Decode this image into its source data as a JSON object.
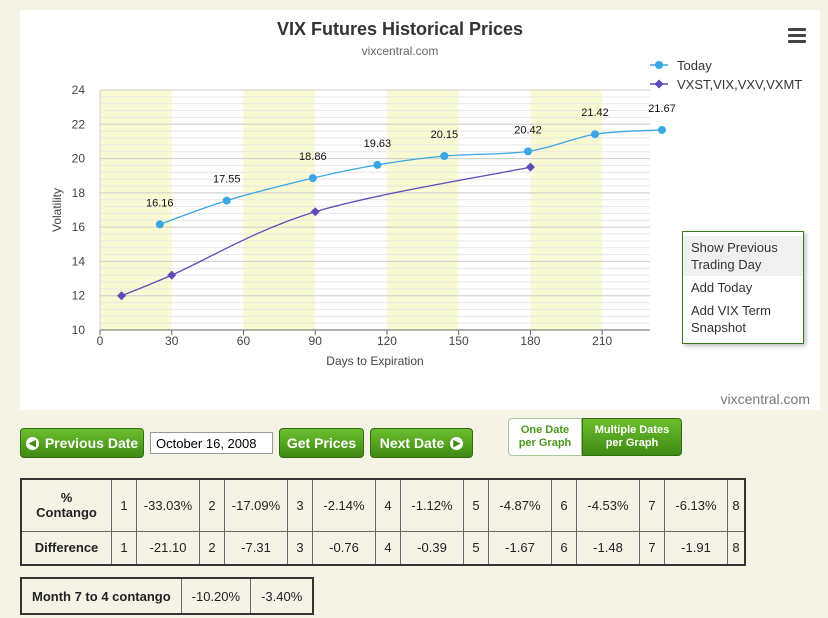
{
  "chart_data": {
    "type": "line",
    "title": "VIX Futures Historical Prices",
    "subtitle": "vixcentral.com",
    "xlabel": "Days to Expiration",
    "ylabel": "Volatility",
    "xlim": [
      0,
      230
    ],
    "ylim": [
      10,
      24
    ],
    "xticks": [
      0,
      30,
      60,
      90,
      120,
      150,
      180,
      210
    ],
    "yticks": [
      10,
      12,
      14,
      16,
      18,
      20,
      22,
      24
    ],
    "legend_position": "top-right",
    "grid": true,
    "series": [
      {
        "name": "Today",
        "color": "#3ba6e6",
        "marker": "circle",
        "x": [
          25,
          53,
          89,
          116,
          144,
          179,
          207,
          235
        ],
        "y": [
          16.16,
          17.55,
          18.86,
          19.63,
          20.15,
          20.42,
          21.42,
          21.67
        ],
        "labels": [
          "16.16",
          "17.55",
          "18.86",
          "19.63",
          "20.15",
          "20.42",
          "21.42",
          "21.67"
        ]
      },
      {
        "name": "VXST,VIX,VXV,VXMT",
        "color": "#5b4cb8",
        "marker": "diamond",
        "x": [
          9,
          30,
          90,
          180
        ],
        "y": [
          12.0,
          13.2,
          16.9,
          19.5
        ]
      }
    ]
  },
  "menu": {
    "items": [
      "Show Previous Trading Day",
      "Add Today",
      "Add VIX Term Snapshot"
    ]
  },
  "credit_bottom": "vixcentral.com",
  "controls": {
    "prev_label": "Previous Date",
    "date_value": "October 16, 2008",
    "get_label": "Get Prices",
    "next_label": "Next Date",
    "one_line1": "One Date",
    "one_line2": "per Graph",
    "multi_line1": "Multiple Dates",
    "multi_line2": "per Graph"
  },
  "contango_table": {
    "row1_label_l1": "%",
    "row1_label_l2": "Contango",
    "row2_label": "Difference",
    "months": [
      "1",
      "2",
      "3",
      "4",
      "5",
      "6",
      "7",
      "8"
    ],
    "contango": [
      "-33.03%",
      "-17.09%",
      "-2.14%",
      "-1.12%",
      "-4.87%",
      "-4.53%",
      "-6.13%"
    ],
    "difference": [
      "-21.10",
      "-7.31",
      "-0.76",
      "-0.39",
      "-1.67",
      "-1.48",
      "-1.91"
    ]
  },
  "month74": {
    "label": "Month 7 to 4 contango",
    "v1": "-10.20%",
    "v2": "-3.40%"
  }
}
